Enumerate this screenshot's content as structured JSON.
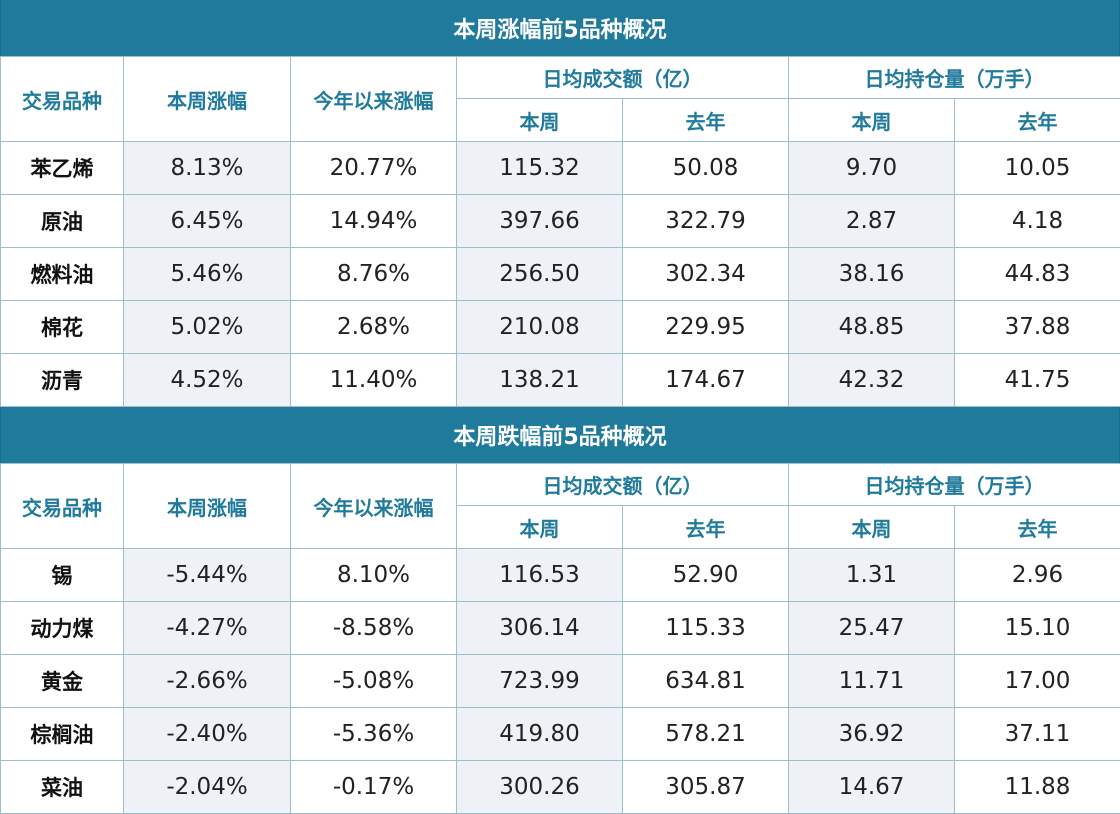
{
  "colors": {
    "header_bg": "#1f7a9c",
    "header_text": "#1f7a9c",
    "row_bg": "#eef2f7"
  },
  "headers": {
    "variety": "交易品种",
    "weekly_change": "本周涨幅",
    "ytd_change": "今年以来涨幅",
    "avg_volume": "日均成交额（亿）",
    "avg_open_interest": "日均持仓量（万手）",
    "this_week": "本周",
    "last_year": "去年"
  },
  "chart_data": [
    {
      "type": "table",
      "title": "本周涨幅前5品种概况",
      "columns": [
        "交易品种",
        "本周涨幅",
        "今年以来涨幅",
        "日均成交额（亿）-本周",
        "日均成交额（亿）-去年",
        "日均持仓量（万手）-本周",
        "日均持仓量（万手）-去年"
      ],
      "rows": [
        [
          "苯乙烯",
          "8.13%",
          "20.77%",
          "115.32",
          "50.08",
          "9.70",
          "10.05"
        ],
        [
          "原油",
          "6.45%",
          "14.94%",
          "397.66",
          "322.79",
          "2.87",
          "4.18"
        ],
        [
          "燃料油",
          "5.46%",
          "8.76%",
          "256.50",
          "302.34",
          "38.16",
          "44.83"
        ],
        [
          "棉花",
          "5.02%",
          "2.68%",
          "210.08",
          "229.95",
          "48.85",
          "37.88"
        ],
        [
          "沥青",
          "4.52%",
          "11.40%",
          "138.21",
          "174.67",
          "42.32",
          "41.75"
        ]
      ]
    },
    {
      "type": "table",
      "title": "本周跌幅前5品种概况",
      "columns": [
        "交易品种",
        "本周涨幅",
        "今年以来涨幅",
        "日均成交额（亿）-本周",
        "日均成交额（亿）-去年",
        "日均持仓量（万手）-本周",
        "日均持仓量（万手）-去年"
      ],
      "rows": [
        [
          "锡",
          "-5.44%",
          "8.10%",
          "116.53",
          "52.90",
          "1.31",
          "2.96"
        ],
        [
          "动力煤",
          "-4.27%",
          "-8.58%",
          "306.14",
          "115.33",
          "25.47",
          "15.10"
        ],
        [
          "黄金",
          "-2.66%",
          "-5.08%",
          "723.99",
          "634.81",
          "11.71",
          "17.00"
        ],
        [
          "棕榈油",
          "-2.40%",
          "-5.36%",
          "419.80",
          "578.21",
          "36.92",
          "37.11"
        ],
        [
          "菜油",
          "-2.04%",
          "-0.17%",
          "300.26",
          "305.87",
          "14.67",
          "11.88"
        ]
      ]
    }
  ]
}
